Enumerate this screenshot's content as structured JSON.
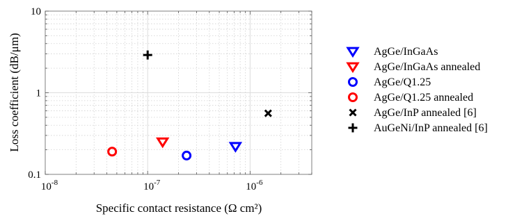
{
  "chart_data": {
    "type": "scatter",
    "title": "",
    "xlabel": "Specific contact resistance (Ω cm²)",
    "ylabel": "Loss coefficient (dB/μm)",
    "xscale": "log",
    "yscale": "log",
    "xlim": [
      1e-08,
      4e-06
    ],
    "ylim": [
      0.1,
      10
    ],
    "x_ticks": [
      {
        "value": 1e-08,
        "base": "10",
        "exp": "-8"
      },
      {
        "value": 1e-07,
        "base": "10",
        "exp": "-7"
      },
      {
        "value": 1e-06,
        "base": "10",
        "exp": "-6"
      }
    ],
    "y_ticks": [
      {
        "value": 0.1,
        "label": "0.1"
      },
      {
        "value": 1,
        "label": "1"
      },
      {
        "value": 10,
        "label": "10"
      }
    ],
    "grid": true,
    "legend_position": "right, outside",
    "series": [
      {
        "name": "AgGe/InGaAs",
        "marker": "triangle-down",
        "color": "#0000ff",
        "x": [
          7.2e-07
        ],
        "y": [
          0.22
        ]
      },
      {
        "name": "AgGe/InGaAs annealed",
        "marker": "triangle-down",
        "color": "#ff0000",
        "x": [
          1.4e-07
        ],
        "y": [
          0.25
        ]
      },
      {
        "name": "AgGe/Q1.25",
        "marker": "circle",
        "color": "#0000ff",
        "x": [
          2.4e-07
        ],
        "y": [
          0.17
        ]
      },
      {
        "name": "AgGe/Q1.25 annealed",
        "marker": "circle",
        "color": "#ff0000",
        "x": [
          4.5e-08
        ],
        "y": [
          0.19
        ]
      },
      {
        "name": "AgGe/InP annealed [6]",
        "marker": "x",
        "color": "#000000",
        "x": [
          1.5e-06
        ],
        "y": [
          0.56
        ]
      },
      {
        "name": "AuGeNi/InP annealed [6]",
        "marker": "plus",
        "color": "#000000",
        "x": [
          1e-07
        ],
        "y": [
          2.9
        ]
      }
    ]
  }
}
